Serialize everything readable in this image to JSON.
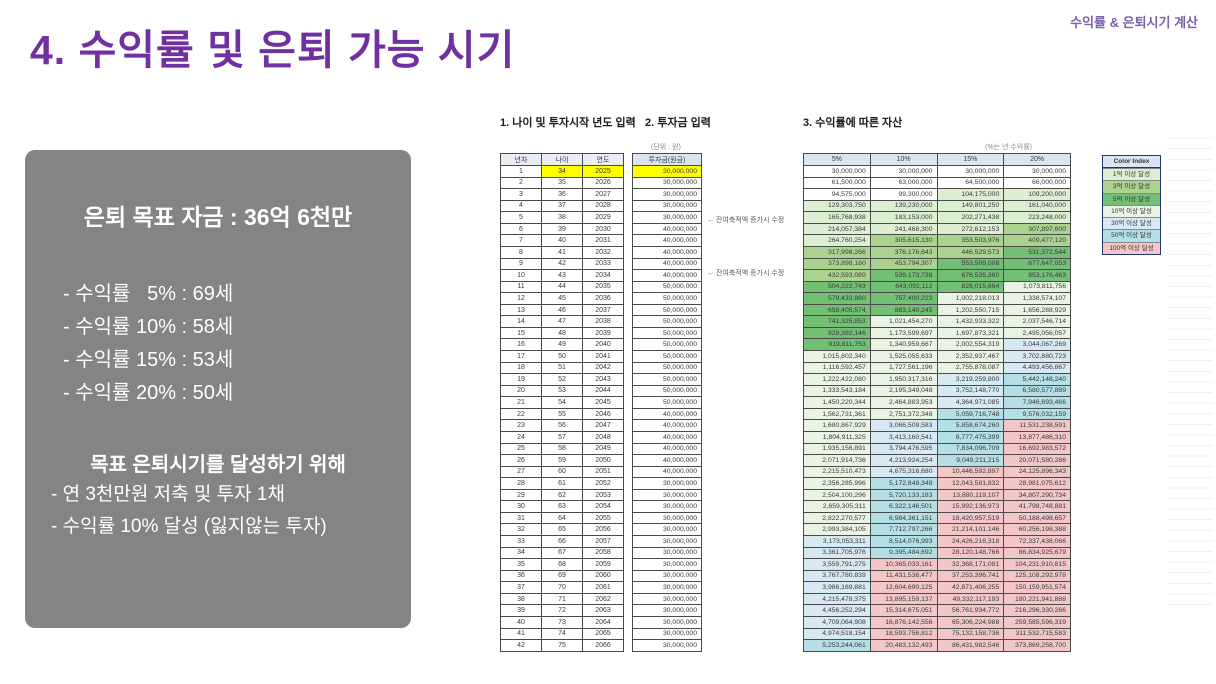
{
  "slide": {
    "title": "4. 수익률 및 은퇴 가능 시기",
    "corner_note": "수익률 & 은퇴시기 계산"
  },
  "summary_box": {
    "headline": "은퇴 목표 자금 : 36억 6천만",
    "rate_lines": [
      "- 수익률   5% : 69세",
      "- 수익률 10% : 58세",
      "- 수익률 15% : 53세",
      "- 수익률 20% : 50세"
    ],
    "goal_title": "목표 은퇴시기를 달성하기 위해",
    "goal_lines": [
      "- 연 3천만원 저축 및 투자 1채",
      "- 수익률 10% 달성 (잃지않는 투자)"
    ]
  },
  "sections": {
    "s1": "1. 나이 및 투자시작 년도 입력",
    "s2": "2. 투자금 입력",
    "s3": "3. 수익률에 따른 자산",
    "unit_note": "(단위 : 원)",
    "rate_note": "(%는 년 수익률)"
  },
  "table1": {
    "headers": [
      "년차",
      "나이",
      "연도"
    ],
    "rows": [
      [
        1,
        34,
        2025
      ],
      [
        2,
        35,
        2026
      ],
      [
        3,
        36,
        2027
      ],
      [
        4,
        37,
        2028
      ],
      [
        5,
        38,
        2029
      ],
      [
        6,
        39,
        2030
      ],
      [
        7,
        40,
        2031
      ],
      [
        8,
        41,
        2032
      ],
      [
        9,
        42,
        2033
      ],
      [
        10,
        43,
        2034
      ],
      [
        11,
        44,
        2035
      ],
      [
        12,
        45,
        2036
      ],
      [
        13,
        46,
        2037
      ],
      [
        14,
        47,
        2038
      ],
      [
        15,
        48,
        2039
      ],
      [
        16,
        49,
        2040
      ],
      [
        17,
        50,
        2041
      ],
      [
        18,
        51,
        2042
      ],
      [
        19,
        52,
        2043
      ],
      [
        20,
        53,
        2044
      ],
      [
        21,
        54,
        2045
      ],
      [
        22,
        55,
        2046
      ],
      [
        23,
        56,
        2047
      ],
      [
        24,
        57,
        2048
      ],
      [
        25,
        58,
        2049
      ],
      [
        26,
        59,
        2050
      ],
      [
        27,
        60,
        2051
      ],
      [
        28,
        61,
        2052
      ],
      [
        29,
        62,
        2053
      ],
      [
        30,
        63,
        2054
      ],
      [
        31,
        64,
        2055
      ],
      [
        32,
        65,
        2056
      ],
      [
        33,
        66,
        2057
      ],
      [
        34,
        67,
        2058
      ],
      [
        35,
        68,
        2059
      ],
      [
        36,
        69,
        2060
      ],
      [
        37,
        70,
        2061
      ],
      [
        38,
        71,
        2062
      ],
      [
        39,
        72,
        2063
      ],
      [
        40,
        73,
        2064
      ],
      [
        41,
        74,
        2065
      ],
      [
        42,
        75,
        2066
      ]
    ]
  },
  "table2": {
    "header": "투자금(원금)",
    "values": [
      30000000,
      30000000,
      30000000,
      30000000,
      30000000,
      40000000,
      40000000,
      40000000,
      40000000,
      40000000,
      50000000,
      50000000,
      50000000,
      50000000,
      50000000,
      50000000,
      50000000,
      50000000,
      50000000,
      50000000,
      50000000,
      40000000,
      40000000,
      40000000,
      40000000,
      40000000,
      40000000,
      30000000,
      30000000,
      30000000,
      30000000,
      30000000,
      30000000,
      30000000,
      30000000,
      30000000,
      30000000,
      30000000,
      30000000,
      30000000,
      30000000,
      30000000
    ],
    "annotations": [
      {
        "row": 6,
        "text": "← 잔여축적액 증가시 수정"
      },
      {
        "row": 11,
        "text": "← 잔여축적액 증가시 수정"
      }
    ]
  },
  "table3": {
    "headers": [
      "5%",
      "10%",
      "15%",
      "20%"
    ],
    "rows": [
      [
        30000000,
        30000000,
        30000000,
        30000000
      ],
      [
        61500000,
        63000000,
        64500000,
        66000000
      ],
      [
        94575000,
        99300000,
        104175000,
        109200000
      ],
      [
        129303750,
        139230000,
        149801250,
        161040000
      ],
      [
        165768938,
        183153000,
        202271438,
        223248000
      ],
      [
        214057384,
        241468300,
        272612153,
        307897600
      ],
      [
        264760254,
        305615130,
        353503976,
        409477120
      ],
      [
        317998266,
        376176643,
        446529573,
        531372544
      ],
      [
        373898180,
        453794307,
        553509008,
        677647053
      ],
      [
        432593089,
        539173738,
        676535360,
        853176463
      ],
      [
        504222743,
        643091112,
        828015664,
        1073811756
      ],
      [
        579433880,
        757400223,
        1002218013,
        1338574107
      ],
      [
        658405574,
        883140245,
        1202550715,
        1656288929
      ],
      [
        741325853,
        1021454270,
        1432933322,
        2037546714
      ],
      [
        828392146,
        1173599697,
        1697873321,
        2495056057
      ],
      [
        919811753,
        1340959667,
        2002554319,
        3044067269
      ],
      [
        1015802340,
        1525055633,
        2352937467,
        3702880723
      ],
      [
        1116592457,
        1727561196,
        2755878087,
        4493456867
      ],
      [
        1222422080,
        1950317316,
        3219259800,
        5442148240
      ],
      [
        1333543184,
        2195349048,
        3752148770,
        6580577889
      ],
      [
        1450220344,
        2464883953,
        4364971085,
        7946693466
      ],
      [
        1562731361,
        2751372348,
        5059716748,
        9576032159
      ],
      [
        1680867929,
        3066509583,
        5858674260,
        11531238591
      ],
      [
        1804911325,
        3413160541,
        6777475399,
        13877486310
      ],
      [
        1935156891,
        3794476595,
        7834096709,
        16692983572
      ],
      [
        2071914736,
        4213924254,
        9049211215,
        20071580286
      ],
      [
        2215510473,
        4675316680,
        10446592897,
        24125896343
      ],
      [
        2356285996,
        5172848348,
        12043581832,
        28981075612
      ],
      [
        2504100296,
        5720133183,
        13880119107,
        34807290734
      ],
      [
        2659305311,
        6322146501,
        15992136973,
        41798748881
      ],
      [
        2822270577,
        6984361151,
        18420957519,
        50188498657
      ],
      [
        2993384105,
        7712797266,
        21214101146,
        60256198388
      ],
      [
        3173053311,
        8514076993,
        24426216318,
        72337438066
      ],
      [
        3361705976,
        9395484692,
        28120148766,
        86834925679
      ],
      [
        3559791275,
        10365033161,
        32368171081,
        104231910815
      ],
      [
        3767780839,
        11431536477,
        37253396741,
        125108292978
      ],
      [
        3986169881,
        12604690125,
        42871406255,
        150159951574
      ],
      [
        4215478375,
        13895159137,
        49332117193,
        180221941888
      ],
      [
        4456252294,
        15314675051,
        56761934772,
        216296330266
      ],
      [
        4709064908,
        16876142556,
        65306224988,
        259585596319
      ],
      [
        4974518154,
        18593756812,
        75132158736,
        311532715583
      ],
      [
        5253244061,
        20483132493,
        86431982546,
        373869258700
      ]
    ],
    "thresholds": [
      [
        10000000000,
        "pink"
      ],
      [
        5000000000,
        "blue2"
      ],
      [
        3000000000,
        "blue1"
      ],
      [
        1000000000,
        "pale"
      ],
      [
        500000000,
        "green3"
      ],
      [
        300000000,
        "green2"
      ],
      [
        100000000,
        "green1"
      ]
    ]
  },
  "color_index": {
    "header": "Color Index",
    "items": [
      {
        "label": "1억 이상 달성",
        "colorKey": "green1"
      },
      {
        "label": "3억 이상 달성",
        "colorKey": "green2"
      },
      {
        "label": "5억 이상 달성",
        "colorKey": "green3"
      },
      {
        "label": "10억 이상 달성",
        "colorKey": "pale"
      },
      {
        "label": "30억 이상 달성",
        "colorKey": "blue1"
      },
      {
        "label": "50억 이상 달성",
        "colorKey": "blue2"
      },
      {
        "label": "100억 이상 달성",
        "colorKey": "pink"
      }
    ]
  },
  "palette": {
    "white": "#ffffff",
    "green1": "#dcefd2",
    "green2": "#abd38f",
    "green3": "#72bf75",
    "pale": "#e9f4e5",
    "blue1": "#d7e9f3",
    "blue2": "#b3dfe5",
    "pink": "#f3c7c7",
    "highlight": "#ffff00",
    "title_purple": "#7030a0",
    "box_gray": "#848484"
  }
}
